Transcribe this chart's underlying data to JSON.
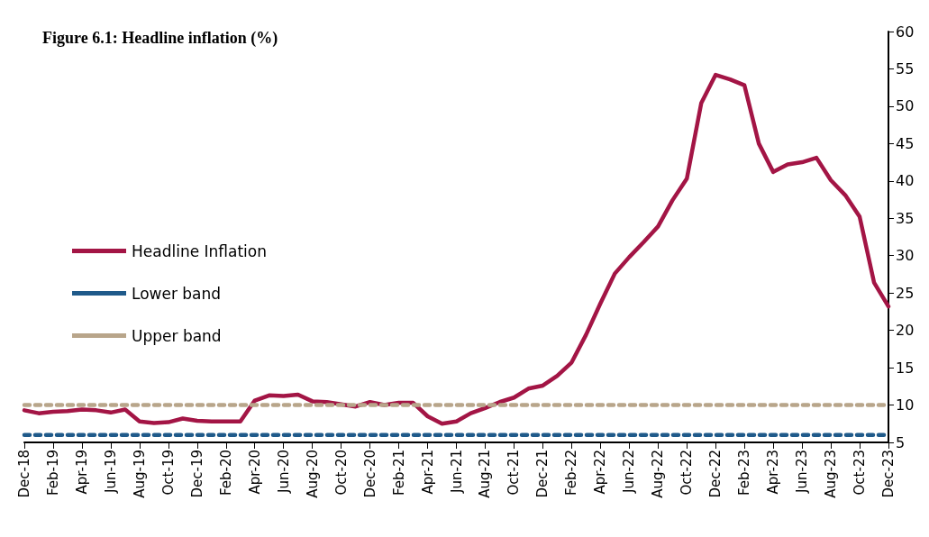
{
  "chart_data": {
    "type": "line",
    "title": "Figure 6.1: Headline inflation (%)",
    "categories": [
      "Dec-18",
      null,
      "Feb-19",
      null,
      "Apr-19",
      null,
      "Jun-19",
      null,
      "Aug-19",
      null,
      "Oct-19",
      null,
      "Dec-19",
      null,
      "Feb-20",
      null,
      "Apr-20",
      null,
      "Jun-20",
      null,
      "Aug-20",
      null,
      "Oct-20",
      null,
      "Dec-20",
      null,
      "Feb-21",
      null,
      "Apr-21",
      null,
      "Jun-21",
      null,
      "Aug-21",
      null,
      "Oct-21",
      null,
      "Dec-21",
      null,
      "Feb-22",
      null,
      "Apr-22",
      null,
      "Jun-22",
      null,
      "Aug-22",
      null,
      "Oct-22",
      null,
      "Dec-22",
      null,
      "Feb-23",
      null,
      "Apr-23",
      null,
      "Jun-23",
      null,
      "Aug-23",
      null,
      "Oct-23",
      null,
      "Dec-23"
    ],
    "series": [
      {
        "name": "Headline Inflation",
        "color": "#a31545",
        "line_style": "solid",
        "values": [
          9.3,
          8.9,
          9.1,
          9.2,
          9.4,
          9.3,
          9.0,
          9.4,
          7.8,
          7.6,
          7.7,
          8.2,
          7.9,
          7.8,
          7.8,
          7.8,
          10.6,
          11.3,
          11.2,
          11.4,
          10.5,
          10.4,
          10.1,
          9.8,
          10.4,
          10.0,
          10.3,
          10.3,
          8.5,
          7.5,
          7.8,
          8.9,
          9.6,
          10.4,
          11.0,
          12.2,
          12.6,
          13.9,
          15.7,
          19.4,
          23.6,
          27.6,
          29.8,
          31.8,
          33.9,
          37.4,
          40.3,
          50.4,
          54.2,
          53.6,
          52.8,
          45.0,
          41.2,
          42.2,
          42.5,
          43.1,
          40.1,
          38.1,
          35.2,
          26.4,
          23.2
        ]
      },
      {
        "name": "Lower band",
        "color": "#1f5a8a",
        "line_style": "dashed",
        "values": [
          6,
          6,
          6,
          6,
          6,
          6,
          6,
          6,
          6,
          6,
          6,
          6,
          6,
          6,
          6,
          6,
          6,
          6,
          6,
          6,
          6,
          6,
          6,
          6,
          6,
          6,
          6,
          6,
          6,
          6,
          6,
          6,
          6,
          6,
          6,
          6,
          6,
          6,
          6,
          6,
          6,
          6,
          6,
          6,
          6,
          6,
          6,
          6,
          6,
          6,
          6,
          6,
          6,
          6,
          6,
          6,
          6,
          6,
          6,
          6,
          6
        ]
      },
      {
        "name": "Upper band",
        "color": "#b8a58a",
        "line_style": "dashed",
        "values": [
          10,
          10,
          10,
          10,
          10,
          10,
          10,
          10,
          10,
          10,
          10,
          10,
          10,
          10,
          10,
          10,
          10,
          10,
          10,
          10,
          10,
          10,
          10,
          10,
          10,
          10,
          10,
          10,
          10,
          10,
          10,
          10,
          10,
          10,
          10,
          10,
          10,
          10,
          10,
          10,
          10,
          10,
          10,
          10,
          10,
          10,
          10,
          10,
          10,
          10,
          10,
          10,
          10,
          10,
          10,
          10,
          10,
          10,
          10,
          10,
          10
        ]
      }
    ],
    "ylim": [
      5,
      60
    ],
    "yticks": [
      5,
      10,
      15,
      20,
      25,
      30,
      35,
      40,
      45,
      50,
      55,
      60
    ],
    "grid": false,
    "legend": "left",
    "marker": "none"
  }
}
